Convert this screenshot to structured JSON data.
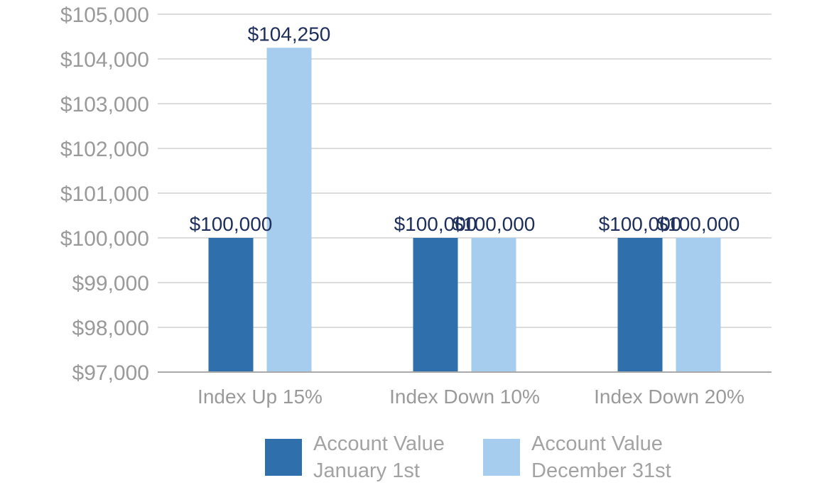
{
  "chart_data": {
    "type": "bar",
    "categories": [
      "Index Up 15%",
      "Index Down 10%",
      "Index Down 20%"
    ],
    "series": [
      {
        "name": "Account Value January 1st",
        "legend_lines": [
          "Account Value",
          "January 1st"
        ],
        "color": "#2f6fab",
        "values": [
          100000,
          100000,
          100000
        ],
        "labels": [
          "$100,000",
          "$100,000",
          "$100,000"
        ]
      },
      {
        "name": "Account Value December 31st",
        "legend_lines": [
          "Account Value",
          "December 31st"
        ],
        "color": "#a7cdee",
        "values": [
          104250,
          100000,
          100000
        ],
        "labels": [
          "$104,250",
          "$100,000",
          "$100,000"
        ]
      }
    ],
    "ylim": [
      97000,
      105000
    ],
    "yticks": [
      {
        "value": 97000,
        "label": "$97,000"
      },
      {
        "value": 98000,
        "label": "$98,000"
      },
      {
        "value": 99000,
        "label": "$99,000"
      },
      {
        "value": 100000,
        "label": "$100,000"
      },
      {
        "value": 101000,
        "label": "$101,000"
      },
      {
        "value": 102000,
        "label": "$102,000"
      },
      {
        "value": 103000,
        "label": "$103,000"
      },
      {
        "value": 104000,
        "label": "$104,000"
      },
      {
        "value": 105000,
        "label": "$105,000"
      }
    ],
    "grid": true,
    "legend_position": "bottom",
    "title": "",
    "xlabel": "",
    "ylabel": ""
  }
}
